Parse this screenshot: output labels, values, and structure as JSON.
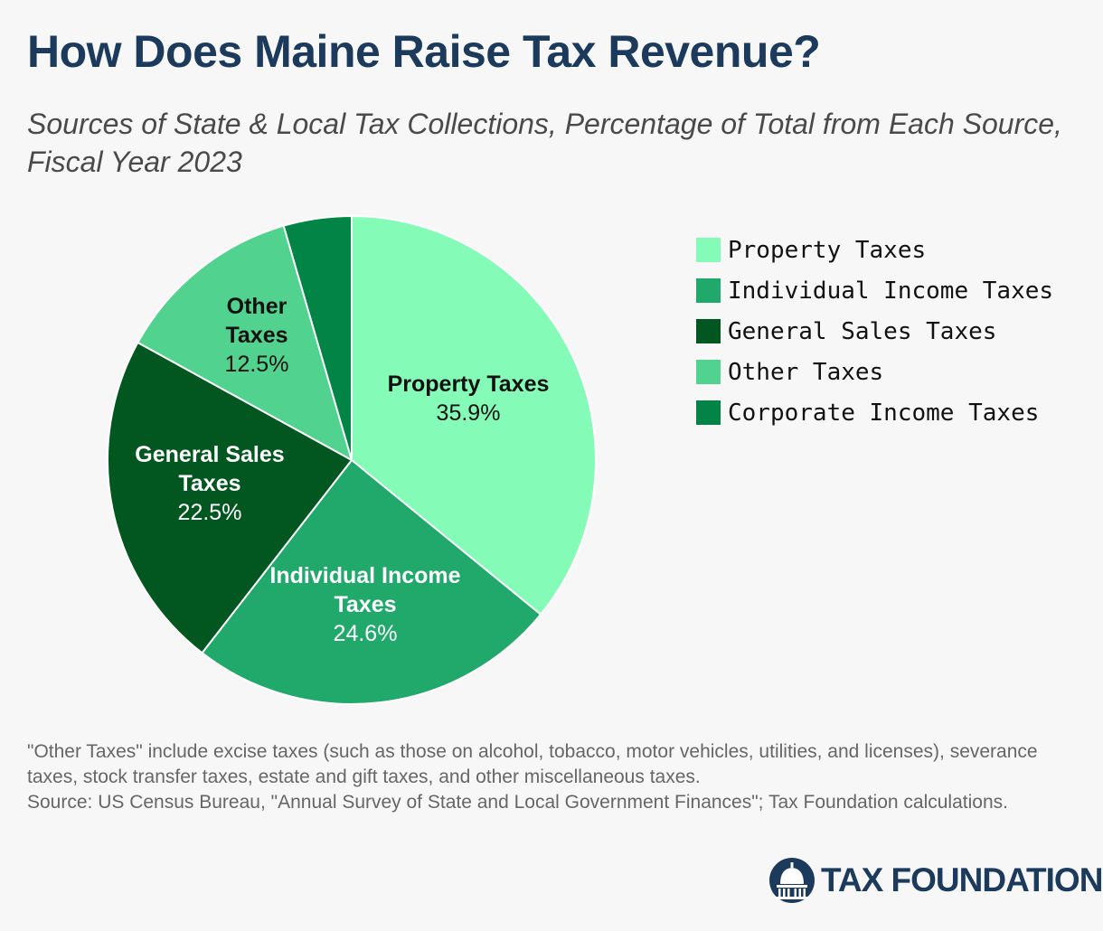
{
  "header": {
    "title": "How Does Maine Raise Tax Revenue?",
    "subtitle": "Sources of State & Local Tax Collections, Percentage of Total from Each Source, Fiscal Year 2023"
  },
  "chart_data": {
    "type": "pie",
    "title": "How Does Maine Raise Tax Revenue?",
    "subtitle": "Sources of State & Local Tax Collections, Percentage of Total from Each Source, Fiscal Year 2023",
    "slices": [
      {
        "name": "Property Taxes",
        "value": 35.9,
        "label": "35.9%",
        "color": "#84fbb6",
        "label_color": "#111111",
        "slice_label_lines": [
          "Property Taxes"
        ]
      },
      {
        "name": "Individual Income Taxes",
        "value": 24.6,
        "label": "24.6%",
        "color": "#20a96b",
        "label_color": "#ffffff",
        "slice_label_lines": [
          "Individual Income",
          "Taxes"
        ]
      },
      {
        "name": "General Sales Taxes",
        "value": 22.5,
        "label": "22.5%",
        "color": "#02561f",
        "label_color": "#ffffff",
        "slice_label_lines": [
          "General Sales",
          "Taxes"
        ]
      },
      {
        "name": "Other Taxes",
        "value": 12.5,
        "label": "12.5%",
        "color": "#51d28e",
        "label_color": "#111111",
        "slice_label_lines": [
          "Other",
          "Taxes"
        ]
      },
      {
        "name": "Corporate Income Taxes",
        "value": 4.5,
        "label": "",
        "color": "#018446",
        "label_color": "#ffffff",
        "slice_label_lines": []
      }
    ],
    "legend_position": "right"
  },
  "legend": [
    {
      "label": "Property Taxes",
      "color": "#84fbb6"
    },
    {
      "label": "Individual Income Taxes",
      "color": "#20a96b"
    },
    {
      "label": "General Sales Taxes",
      "color": "#02561f"
    },
    {
      "label": "Other Taxes",
      "color": "#51d28e"
    },
    {
      "label": "Corporate Income Taxes",
      "color": "#018446"
    }
  ],
  "footer": {
    "note": "\"Other Taxes\" include excise taxes (such as those on alcohol, tobacco, motor vehicles, utilities, and licenses), severance taxes, stock transfer taxes, estate and gift taxes, and other miscellaneous taxes.",
    "source": "Source: US Census Bureau, \"Annual Survey of State and Local Government Finances\"; Tax Foundation calculations.",
    "brand": "TAX FOUNDATION",
    "brand_icon": "capitol-dome-icon",
    "brand_color": "#1b3a5c"
  }
}
